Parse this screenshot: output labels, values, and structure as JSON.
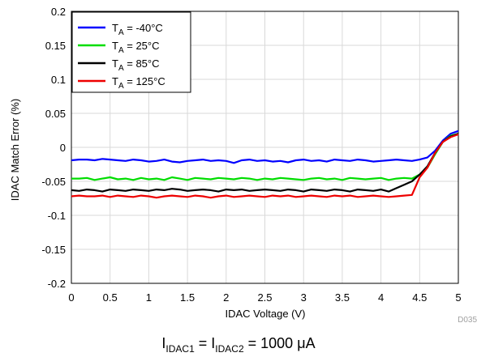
{
  "chart_data": {
    "type": "line",
    "xlabel": "IDAC Voltage (V)",
    "ylabel": "IDAC Match Error (%)",
    "xlim": [
      0,
      5
    ],
    "ylim": [
      -0.2,
      0.2
    ],
    "x_ticks": [
      "0",
      "0.5",
      "1",
      "1.5",
      "2",
      "2.5",
      "3",
      "3.5",
      "4",
      "4.5",
      "5"
    ],
    "y_ticks": [
      "0.2",
      "0.15",
      "0.1",
      "0.05",
      "0",
      "-0.05",
      "-0.1",
      "-0.15",
      "-0.2"
    ],
    "grid": true,
    "legend_position": "top-left",
    "x": [
      0,
      0.1,
      0.2,
      0.3,
      0.4,
      0.5,
      0.6,
      0.7,
      0.8,
      0.9,
      1.0,
      1.1,
      1.2,
      1.3,
      1.4,
      1.5,
      1.6,
      1.7,
      1.8,
      1.9,
      2.0,
      2.1,
      2.2,
      2.3,
      2.4,
      2.5,
      2.6,
      2.7,
      2.8,
      2.9,
      3.0,
      3.1,
      3.2,
      3.3,
      3.4,
      3.5,
      3.6,
      3.7,
      3.8,
      3.9,
      4.0,
      4.1,
      4.2,
      4.3,
      4.4,
      4.5,
      4.6,
      4.7,
      4.8,
      4.9,
      5.0
    ],
    "series": [
      {
        "name_main": "T",
        "name_sub": "A",
        "name_rest": " = -40°C",
        "color": "#0000ff",
        "values": [
          -0.019,
          -0.018,
          -0.018,
          -0.019,
          -0.017,
          -0.018,
          -0.019,
          -0.02,
          -0.018,
          -0.019,
          -0.021,
          -0.02,
          -0.018,
          -0.021,
          -0.022,
          -0.02,
          -0.019,
          -0.018,
          -0.02,
          -0.019,
          -0.02,
          -0.023,
          -0.019,
          -0.018,
          -0.02,
          -0.019,
          -0.021,
          -0.02,
          -0.022,
          -0.019,
          -0.018,
          -0.02,
          -0.019,
          -0.021,
          -0.018,
          -0.019,
          -0.02,
          -0.018,
          -0.019,
          -0.021,
          -0.02,
          -0.019,
          -0.018,
          -0.019,
          -0.02,
          -0.018,
          -0.015,
          -0.005,
          0.01,
          0.02,
          0.024
        ]
      },
      {
        "name_main": "T",
        "name_sub": "A",
        "name_rest": " = 25°C",
        "color": "#00dd00",
        "values": [
          -0.046,
          -0.046,
          -0.045,
          -0.048,
          -0.046,
          -0.044,
          -0.047,
          -0.046,
          -0.048,
          -0.045,
          -0.047,
          -0.046,
          -0.048,
          -0.044,
          -0.046,
          -0.048,
          -0.045,
          -0.046,
          -0.047,
          -0.045,
          -0.046,
          -0.047,
          -0.045,
          -0.046,
          -0.048,
          -0.046,
          -0.047,
          -0.045,
          -0.046,
          -0.047,
          -0.048,
          -0.046,
          -0.045,
          -0.047,
          -0.046,
          -0.048,
          -0.045,
          -0.046,
          -0.047,
          -0.046,
          -0.045,
          -0.048,
          -0.046,
          -0.045,
          -0.046,
          -0.04,
          -0.03,
          -0.01,
          0.008,
          0.017,
          0.02
        ]
      },
      {
        "name_main": "T",
        "name_sub": "A",
        "name_rest": " = 85°C",
        "color": "#000000",
        "values": [
          -0.063,
          -0.064,
          -0.062,
          -0.063,
          -0.065,
          -0.062,
          -0.063,
          -0.064,
          -0.062,
          -0.063,
          -0.064,
          -0.062,
          -0.063,
          -0.061,
          -0.062,
          -0.064,
          -0.063,
          -0.062,
          -0.063,
          -0.065,
          -0.062,
          -0.063,
          -0.062,
          -0.064,
          -0.063,
          -0.062,
          -0.063,
          -0.064,
          -0.062,
          -0.063,
          -0.065,
          -0.062,
          -0.063,
          -0.064,
          -0.062,
          -0.063,
          -0.065,
          -0.062,
          -0.063,
          -0.064,
          -0.062,
          -0.065,
          -0.06,
          -0.055,
          -0.05,
          -0.04,
          -0.028,
          -0.008,
          0.008,
          0.016,
          0.02
        ]
      },
      {
        "name_main": "T",
        "name_sub": "A",
        "name_rest": " = 125°C",
        "color": "#ee0000",
        "values": [
          -0.072,
          -0.071,
          -0.072,
          -0.072,
          -0.071,
          -0.073,
          -0.071,
          -0.072,
          -0.073,
          -0.071,
          -0.072,
          -0.074,
          -0.072,
          -0.071,
          -0.072,
          -0.073,
          -0.071,
          -0.072,
          -0.074,
          -0.072,
          -0.071,
          -0.073,
          -0.072,
          -0.071,
          -0.072,
          -0.073,
          -0.071,
          -0.072,
          -0.071,
          -0.073,
          -0.072,
          -0.071,
          -0.072,
          -0.073,
          -0.071,
          -0.072,
          -0.071,
          -0.073,
          -0.072,
          -0.071,
          -0.072,
          -0.073,
          -0.072,
          -0.071,
          -0.07,
          -0.044,
          -0.03,
          -0.008,
          0.008,
          0.015,
          0.019
        ]
      }
    ],
    "watermark": "D035",
    "footer": {
      "i1": "I",
      "s1": "IDAC1",
      "eq1": " = ",
      "i2": "I",
      "s2": "IDAC2",
      "rest": " = 1000 μA"
    }
  }
}
